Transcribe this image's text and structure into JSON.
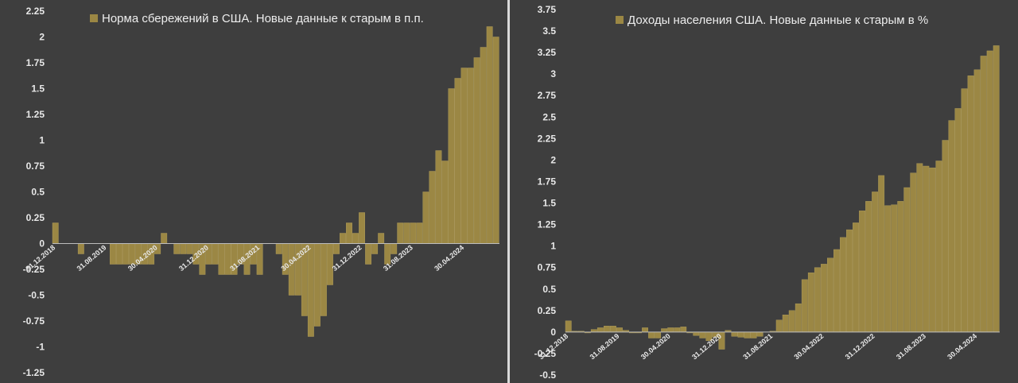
{
  "chart_data": [
    {
      "type": "bar",
      "legend": "Норма сбережений в США. Новые данные к старым в п.п.",
      "legend_position": "top",
      "ylim": [
        -1.25,
        2.25
      ],
      "yticks": [
        "2.25",
        "2",
        "1.75",
        "1.5",
        "1.25",
        "1",
        "0.75",
        "0.5",
        "0.25",
        "0",
        "-0.25",
        "-0.5",
        "-0.75",
        "-1",
        "-1.25"
      ],
      "xtick_labels": [
        {
          "index": 0,
          "label": "31.12.2018"
        },
        {
          "index": 8,
          "label": "31.08.2019"
        },
        {
          "index": 16,
          "label": "30.04.2020"
        },
        {
          "index": 24,
          "label": "31.12.2020"
        },
        {
          "index": 32,
          "label": "31.08.2021"
        },
        {
          "index": 40,
          "label": "30.04.2022"
        },
        {
          "index": 48,
          "label": "31.12.2022"
        },
        {
          "index": 56,
          "label": "31.08.2023"
        },
        {
          "index": 64,
          "label": "30.04.2024"
        }
      ],
      "color": "#9b8744",
      "values": [
        0.2,
        0,
        0,
        0,
        -0.1,
        0,
        0,
        0,
        0,
        -0.2,
        -0.2,
        -0.2,
        -0.2,
        -0.2,
        -0.2,
        -0.2,
        -0.1,
        0.1,
        0,
        -0.1,
        -0.1,
        -0.1,
        -0.2,
        -0.3,
        -0.2,
        -0.2,
        -0.3,
        -0.3,
        -0.3,
        -0.2,
        -0.3,
        -0.2,
        -0.3,
        0,
        0,
        -0.1,
        -0.3,
        -0.5,
        -0.5,
        -0.7,
        -0.9,
        -0.8,
        -0.7,
        -0.4,
        -0.1,
        0.1,
        0.2,
        0.1,
        0.3,
        -0.2,
        -0.1,
        0.1,
        -0.2,
        -0.1,
        0.2,
        0.2,
        0.2,
        0.2,
        0.5,
        0.7,
        0.9,
        0.8,
        1.5,
        1.6,
        1.7,
        1.7,
        1.8,
        1.9,
        2.1,
        2.0
      ]
    },
    {
      "type": "bar",
      "legend": "Доходы населения США. Новые данные к старым в %",
      "legend_position": "top",
      "ylim": [
        -0.5,
        3.75
      ],
      "yticks": [
        "3.75",
        "3.5",
        "3.25",
        "3",
        "2.75",
        "2.5",
        "2.25",
        "2",
        "1.75",
        "1.5",
        "1.25",
        "1",
        "0.75",
        "0.5",
        "0.25",
        "0",
        "-0.25",
        "-0.5"
      ],
      "xtick_labels": [
        {
          "index": 0,
          "label": "31.12.2018"
        },
        {
          "index": 8,
          "label": "31.08.2019"
        },
        {
          "index": 16,
          "label": "30.04.2020"
        },
        {
          "index": 24,
          "label": "31.12.2020"
        },
        {
          "index": 32,
          "label": "31.08.2021"
        },
        {
          "index": 40,
          "label": "30.04.2022"
        },
        {
          "index": 48,
          "label": "31.12.2022"
        },
        {
          "index": 56,
          "label": "31.08.2023"
        },
        {
          "index": 64,
          "label": "30.04.2024"
        }
      ],
      "color": "#9b8744",
      "values": [
        0.13,
        0.01,
        0.01,
        -0.01,
        0.03,
        0.05,
        0.07,
        0.07,
        0.05,
        0.02,
        -0.01,
        -0.01,
        0.05,
        -0.07,
        -0.07,
        0.04,
        0.05,
        0.05,
        0.06,
        -0.01,
        -0.04,
        -0.07,
        -0.1,
        -0.06,
        -0.2,
        0.02,
        -0.05,
        -0.06,
        -0.07,
        -0.07,
        -0.05,
        0,
        0.01,
        0.14,
        0.2,
        0.25,
        0.33,
        0.61,
        0.69,
        0.75,
        0.79,
        0.86,
        0.96,
        1.1,
        1.19,
        1.27,
        1.41,
        1.52,
        1.63,
        1.82,
        1.47,
        1.48,
        1.52,
        1.68,
        1.85,
        1.96,
        1.93,
        1.91,
        1.99,
        2.23,
        2.46,
        2.6,
        2.83,
        2.98,
        3.05,
        3.21,
        3.27,
        3.33
      ]
    }
  ]
}
